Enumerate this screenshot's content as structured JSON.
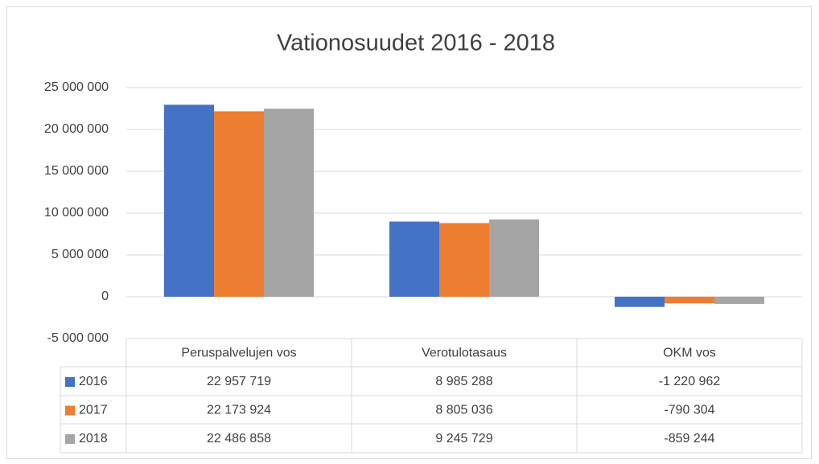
{
  "chart_data": {
    "type": "bar",
    "title": "Vationosuudet 2016 - 2018",
    "categories": [
      "Peruspalvelujen vos",
      "Verotulotasaus",
      "OKM vos"
    ],
    "series": [
      {
        "name": "2016",
        "color": "#4472c4",
        "values": [
          22957719,
          8985288,
          -1220962
        ],
        "value_labels": [
          "22 957 719",
          "8 985 288",
          "-1 220 962"
        ]
      },
      {
        "name": "2017",
        "color": "#ed7d31",
        "values": [
          22173924,
          8805036,
          -790304
        ],
        "value_labels": [
          "22 173 924",
          "8 805 036",
          "-790 304"
        ]
      },
      {
        "name": "2018",
        "color": "#a5a5a5",
        "values": [
          22486858,
          9245729,
          -859244
        ],
        "value_labels": [
          "22 486 858",
          "9 245 729",
          "-859 244"
        ]
      }
    ],
    "ylim": [
      -5000000,
      25000000
    ],
    "yticks": [
      {
        "value": -5000000,
        "label": "-5 000 000"
      },
      0,
      {
        "value": 5000000,
        "label": "5 000 000"
      },
      {
        "value": 10000000,
        "label": "10 000 000"
      },
      {
        "value": 15000000,
        "label": "15 000 000"
      },
      {
        "value": 20000000,
        "label": "20 000 000"
      },
      {
        "value": 25000000,
        "label": "25 000 000"
      }
    ],
    "grid": true
  }
}
